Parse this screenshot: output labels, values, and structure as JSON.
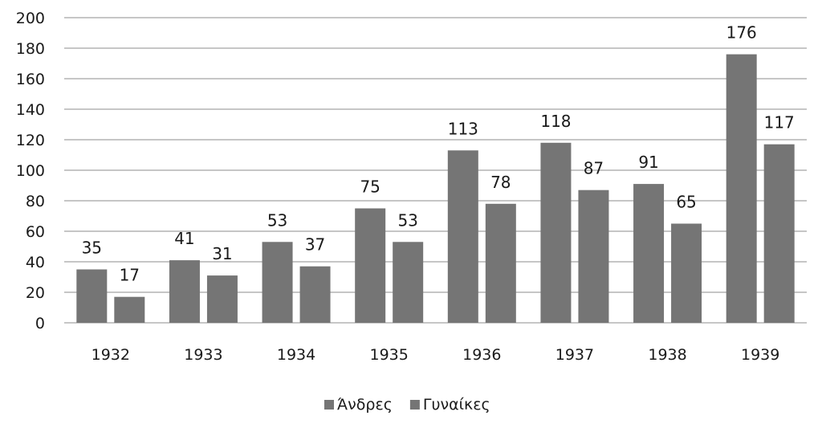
{
  "chart_data": {
    "type": "bar",
    "categories": [
      "1932",
      "1933",
      "1934",
      "1935",
      "1936",
      "1937",
      "1938",
      "1939"
    ],
    "series": [
      {
        "name": "Άνδρες",
        "values": [
          35,
          41,
          53,
          75,
          113,
          118,
          91,
          176
        ]
      },
      {
        "name": "Γυναίκες",
        "values": [
          17,
          31,
          37,
          53,
          78,
          87,
          65,
          117
        ]
      }
    ],
    "ylim": [
      0,
      200
    ],
    "yticks": [
      0,
      20,
      40,
      60,
      80,
      100,
      120,
      140,
      160,
      180,
      200
    ],
    "grid": true,
    "legend_position": "bottom-center",
    "colors": {
      "series": "#757575",
      "grid": "#8c8c8c",
      "text": "#1a1a1a"
    },
    "data_labels": true
  }
}
